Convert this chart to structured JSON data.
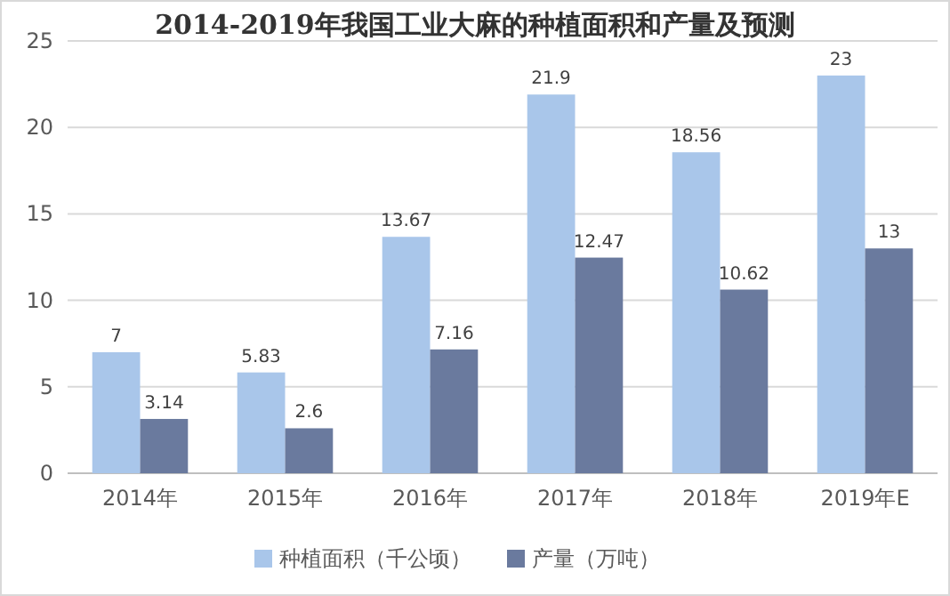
{
  "chart_data": {
    "type": "bar",
    "title": "2014-2019年我国工业大麻的种植面积和产量及预测",
    "categories": [
      "2014年",
      "2015年",
      "2016年",
      "2017年",
      "2018年",
      "2019年E"
    ],
    "series": [
      {
        "name": "种植面积（千公顷）",
        "color": "#a9c6ea",
        "values": [
          7,
          5.83,
          13.67,
          21.9,
          18.56,
          23
        ]
      },
      {
        "name": "产量（万吨）",
        "color": "#6a7a9e",
        "values": [
          3.14,
          2.6,
          7.16,
          12.47,
          10.62,
          13
        ]
      }
    ],
    "ylim": [
      0,
      25
    ],
    "yticks": [
      0,
      5,
      10,
      15,
      20,
      25
    ],
    "grid": "y",
    "legend": "bottom",
    "data_labels": true
  }
}
